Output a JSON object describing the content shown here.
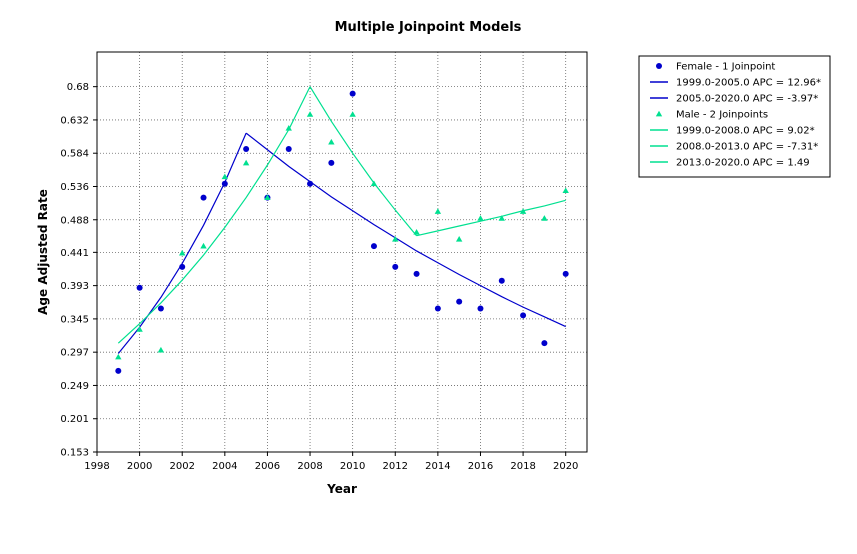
{
  "chart_data": {
    "type": "scatter",
    "title": "Multiple Joinpoint Models",
    "xlabel": "Year",
    "ylabel": "Age Adjusted Rate",
    "xlim": [
      1998,
      2021
    ],
    "ylim": [
      0.153,
      0.73
    ],
    "x_ticks": [
      1998,
      2000,
      2002,
      2004,
      2006,
      2008,
      2010,
      2012,
      2014,
      2016,
      2018,
      2020
    ],
    "x_tick_labels": [
      "1998",
      "2000",
      "2002",
      "2004",
      "2006",
      "2008",
      "2010",
      "2012",
      "2014",
      "2016",
      "2018",
      "2020"
    ],
    "y_ticks": [
      0.153,
      0.201,
      0.249,
      0.297,
      0.345,
      0.393,
      0.441,
      0.488,
      0.536,
      0.584,
      0.632,
      0.68
    ],
    "y_tick_labels": [
      "0.153",
      "0.201",
      "0.249",
      "0.297",
      "0.345",
      "0.393",
      "0.441",
      "0.488",
      "0.536",
      "0.584",
      "0.632",
      "0.68"
    ],
    "grid": true,
    "legend_position": "right",
    "series": [
      {
        "name": "Female - 1 Joinpoint",
        "kind": "points",
        "marker": "circle",
        "color": "#0000cc",
        "x": [
          1999,
          2000,
          2001,
          2002,
          2003,
          2004,
          2005,
          2006,
          2007,
          2008,
          2009,
          2010,
          2011,
          2012,
          2013,
          2014,
          2015,
          2016,
          2017,
          2018,
          2019,
          2020
        ],
        "y": [
          0.27,
          0.39,
          0.36,
          0.42,
          0.52,
          0.54,
          0.59,
          0.52,
          0.59,
          0.54,
          0.57,
          0.67,
          0.45,
          0.42,
          0.41,
          0.36,
          0.37,
          0.36,
          0.4,
          0.35,
          0.31,
          0.41
        ]
      },
      {
        "name": "1999.0-2005.0 APC  =  12.96*",
        "kind": "line",
        "color": "#0000cc",
        "x": [
          1999,
          2000,
          2001,
          2002,
          2003,
          2004,
          2005
        ],
        "y": [
          0.295,
          0.333,
          0.376,
          0.425,
          0.48,
          0.542,
          0.613
        ]
      },
      {
        "name": "2005.0-2020.0 APC  =  -3.97*",
        "kind": "line",
        "color": "#0000cc",
        "x": [
          2005,
          2006,
          2007,
          2008,
          2009,
          2010,
          2011,
          2012,
          2013,
          2014,
          2015,
          2016,
          2017,
          2018,
          2019,
          2020
        ],
        "y": [
          0.613,
          0.589,
          0.565,
          0.543,
          0.521,
          0.501,
          0.481,
          0.462,
          0.443,
          0.426,
          0.409,
          0.393,
          0.377,
          0.362,
          0.348,
          0.334
        ]
      },
      {
        "name": "Male - 2 Joinpoints",
        "kind": "points",
        "marker": "triangle",
        "color": "#00e090",
        "x": [
          1999,
          2000,
          2001,
          2002,
          2003,
          2004,
          2005,
          2006,
          2007,
          2008,
          2009,
          2010,
          2011,
          2012,
          2013,
          2014,
          2015,
          2016,
          2017,
          2018,
          2019,
          2020
        ],
        "y": [
          0.29,
          0.33,
          0.3,
          0.44,
          0.45,
          0.55,
          0.57,
          0.52,
          0.62,
          0.64,
          0.6,
          0.64,
          0.54,
          0.46,
          0.47,
          0.5,
          0.46,
          0.49,
          0.49,
          0.5,
          0.49,
          0.53
        ]
      },
      {
        "name": "1999.0-2008.0 APC  =  9.02*",
        "kind": "line",
        "color": "#00e090",
        "x": [
          1999,
          2000,
          2001,
          2002,
          2003,
          2004,
          2005,
          2006,
          2007,
          2008
        ],
        "y": [
          0.31,
          0.338,
          0.368,
          0.401,
          0.437,
          0.477,
          0.52,
          0.567,
          0.618,
          0.68
        ]
      },
      {
        "name": "2008.0-2013.0 APC  =  -7.31*",
        "kind": "line",
        "color": "#00e090",
        "x": [
          2008,
          2009,
          2010,
          2011,
          2012,
          2013
        ],
        "y": [
          0.68,
          0.63,
          0.584,
          0.541,
          0.502,
          0.465
        ]
      },
      {
        "name": "2013.0-2020.0 APC  =  1.49",
        "kind": "line",
        "color": "#00e090",
        "x": [
          2013,
          2014,
          2015,
          2016,
          2017,
          2018,
          2019,
          2020
        ],
        "y": [
          0.465,
          0.472,
          0.479,
          0.486,
          0.493,
          0.501,
          0.508,
          0.516
        ]
      }
    ]
  }
}
